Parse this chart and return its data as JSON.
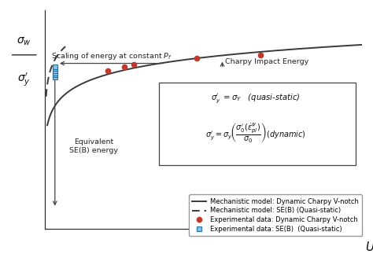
{
  "bg_color": "#ffffff",
  "solid_curve_color": "#3a3a3a",
  "dashed_curve_color": "#3a3a3a",
  "charpy_marker_color": "#c0392b",
  "seb_marker_facecolor": "#85c1e9",
  "seb_marker_edgecolor": "#2471a3",
  "charpy_data_x": [
    0.2,
    0.25,
    0.28,
    0.48,
    0.68
  ],
  "charpy_data_y": [
    0.615,
    0.63,
    0.638,
    0.662,
    0.675
  ],
  "seb_data_x": [
    0.032,
    0.032,
    0.032,
    0.032,
    0.032,
    0.032
  ],
  "seb_data_y": [
    0.59,
    0.598,
    0.606,
    0.614,
    0.622,
    0.63
  ],
  "annotation_scaling": "Scaling of energy at constant $P_f$",
  "annotation_charpy": "Charpy Impact Energy",
  "annotation_equiv": "Equivalent\nSE(B) energy",
  "legend_entries": [
    "Mechanistic model: Dynamic Charpy V-notch",
    "Mechanistic model: SE(B) (Quasi-static)",
    "Experimental data: Dynamic Charpy V-notch",
    "Experimental data: SE(B)  (Quasi-static)"
  ],
  "xlim": [
    0,
    1.0
  ],
  "ylim": [
    0.0,
    0.85
  ],
  "xlabel": "U"
}
